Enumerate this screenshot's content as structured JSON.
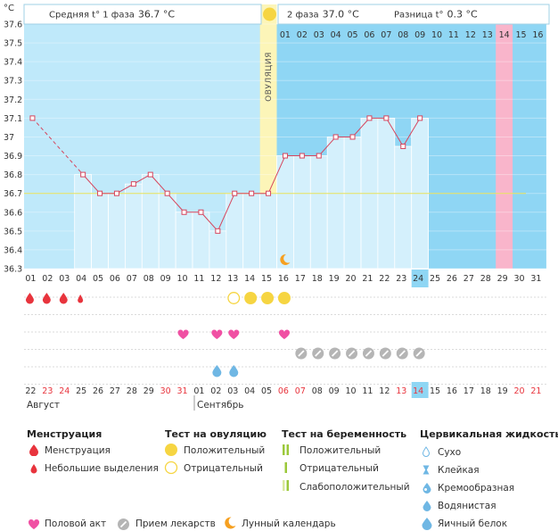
{
  "chart_data": {
    "type": "line",
    "y_unit": "°C",
    "y_ticks": [
      "37.6",
      "37.5",
      "37.4",
      "37.3",
      "37.2",
      "37.1",
      "37",
      "36.9",
      "36.8",
      "36.7",
      "36.6",
      "36.5",
      "36.4",
      "36.3"
    ],
    "ylim": [
      36.3,
      37.6
    ],
    "cycle_days": [
      "01",
      "02",
      "03",
      "04",
      "05",
      "06",
      "07",
      "08",
      "09",
      "10",
      "11",
      "12",
      "13",
      "14",
      "15",
      "16",
      "17",
      "18",
      "19",
      "20",
      "21",
      "22",
      "23",
      "24",
      "25",
      "26",
      "27",
      "28",
      "29",
      "30",
      "31"
    ],
    "temperatures": [
      37.1,
      null,
      null,
      36.8,
      36.7,
      36.7,
      36.75,
      36.8,
      36.7,
      36.6,
      36.6,
      36.5,
      36.7,
      36.7,
      36.7,
      36.9,
      36.9,
      36.9,
      37.0,
      37.0,
      37.1,
      37.1,
      36.95,
      37.1,
      null,
      null,
      null,
      null,
      null,
      null,
      null
    ],
    "coverline": 36.7,
    "phase1_label": "Средняя t° 1 фаза",
    "phase1_value": "36.7 °C",
    "ovulation_label": "ОВУЛЯЦИЯ",
    "phase2_label": "2 фаза",
    "phase2_value": "37.0 °C",
    "diff_label": "Разница t°",
    "diff_value": "0.3 °C",
    "phase2_days": [
      "01",
      "02",
      "03",
      "04",
      "05",
      "06",
      "07",
      "08",
      "09",
      "10",
      "11",
      "12",
      "13",
      "14",
      "15",
      "16"
    ],
    "expected_period_phase2_day": "14",
    "today_cycle_day": "24",
    "calendar_dates": [
      "22",
      "23",
      "24",
      "25",
      "26",
      "27",
      "28",
      "29",
      "30",
      "31",
      "01",
      "02",
      "03",
      "04",
      "05",
      "06",
      "07",
      "08",
      "09",
      "10",
      "11",
      "12",
      "13",
      "14",
      "15",
      "16",
      "17",
      "18",
      "19",
      "20",
      "21"
    ],
    "weekend_dates_red": [
      1,
      2,
      8,
      9,
      15,
      16,
      22,
      23,
      29,
      30
    ],
    "month1": "Август",
    "month2": "Сентябрь",
    "today_calendar_date": "14",
    "moon_day": 16,
    "events": {
      "menstruation_large_days": [
        1,
        2,
        3
      ],
      "menstruation_small_days": [
        4
      ],
      "ovulation_test_positive_days": [
        14,
        15,
        16
      ],
      "ovulation_test_negative_days": [
        13
      ],
      "intercourse_days": [
        10,
        12,
        13,
        16
      ],
      "medication_days": [
        17,
        18,
        19,
        20,
        21,
        22,
        23,
        24
      ],
      "cervical_egg_white_days": [
        12,
        13
      ]
    },
    "colors": {
      "plot_bg": "#8fd6f4",
      "phase1_band": "#bfe9fa",
      "ovulation_band": "#fcf5b8",
      "ovulation_circle": "#f6d542",
      "expected_period": "#f9b5cb",
      "line": "#d6455d",
      "coverline": "#e8e25a",
      "fill": "#d4f0fc",
      "today": "#8fd6f4",
      "drop": "#e8343d",
      "heart": "#f050a3",
      "pill": "#b5b5b5",
      "moon": "#f6a020",
      "weekend": "#e8343d"
    }
  },
  "legend": {
    "menstruation": {
      "title": "Менструация",
      "items": [
        "Менструация",
        "Небольшие выделения"
      ]
    },
    "ovulation_test": {
      "title": "Тест на овуляцию",
      "items": [
        "Положительный",
        "Отрицательный"
      ]
    },
    "pregnancy_test": {
      "title": "Тест на беременность",
      "items": [
        "Положительный",
        "Отрицательный",
        "Слабоположительный"
      ]
    },
    "cervical": {
      "title": "Цервикальная жидкость",
      "items": [
        "Сухо",
        "Клейкая",
        "Кремообразная",
        "Водянистая",
        "Яичный белок"
      ]
    },
    "bottom": [
      "Половой акт",
      "Прием лекарств",
      "Лунный календарь"
    ]
  }
}
